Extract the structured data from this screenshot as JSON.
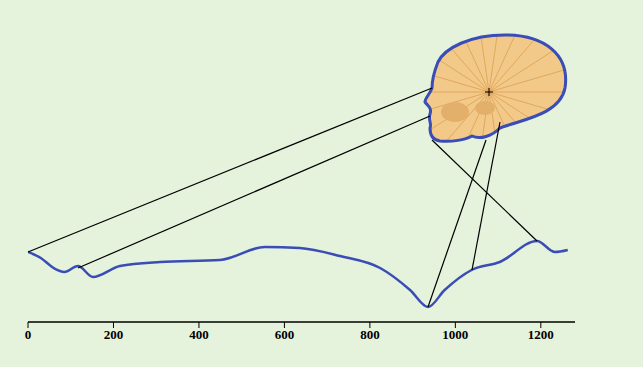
{
  "chart_data": {
    "type": "line",
    "x": [
      0,
      30,
      60,
      85,
      117,
      152,
      215,
      309,
      449,
      554,
      636,
      730,
      824,
      894,
      936,
      975,
      1038,
      1104,
      1191,
      1233,
      1263
    ],
    "values": [
      70,
      64,
      54,
      50,
      56,
      45,
      56,
      60,
      62,
      75,
      74,
      66,
      54,
      32,
      15,
      32,
      52,
      60,
      81,
      70,
      72
    ],
    "color": "#3a4cb5",
    "xlim": [
      0,
      1280
    ],
    "xticks": [
      0,
      200,
      400,
      600,
      800,
      1000,
      1200
    ],
    "ylim": [
      0,
      300
    ],
    "tick_labels": "x"
  }
}
